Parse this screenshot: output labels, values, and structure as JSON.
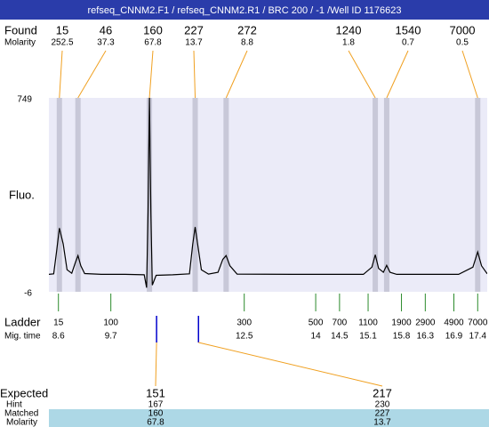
{
  "chart_data": {
    "type": "line",
    "title": "refseq_CNNM2.F1 / refseq_CNNM2.R1 / BRC 200 / -1 /Well ID 1176623",
    "y_label": "Fluo.",
    "ylim": [
      -6,
      749
    ],
    "yticks": [
      -6,
      749
    ],
    "xlim": [
      8.4,
      17.6
    ],
    "color": "#000000",
    "x": [
      8.4,
      8.5,
      8.56,
      8.62,
      8.7,
      8.78,
      8.88,
      8.96,
      9.01,
      9.07,
      9.15,
      9.5,
      10.0,
      10.4,
      10.45,
      10.48,
      10.51,
      10.54,
      10.57,
      10.65,
      11.0,
      11.35,
      11.42,
      11.47,
      11.53,
      11.6,
      11.75,
      11.95,
      12.05,
      12.12,
      12.2,
      12.35,
      13.5,
      15.0,
      15.18,
      15.25,
      15.32,
      15.42,
      15.49,
      15.56,
      15.7,
      17.0,
      17.3,
      17.4,
      17.48,
      17.6
    ],
    "values": [
      62,
      64,
      150,
      242,
      180,
      80,
      66,
      110,
      135,
      95,
      65,
      62,
      62,
      60,
      10,
      300,
      749,
      300,
      20,
      58,
      60,
      64,
      180,
      246,
      170,
      80,
      63,
      70,
      120,
      135,
      95,
      63,
      62,
      62,
      90,
      138,
      85,
      70,
      97,
      70,
      62,
      62,
      90,
      149,
      95,
      64
    ],
    "found": {
      "label": "Found",
      "sub_label": "Molarity",
      "sizes": [
        15,
        46,
        160,
        227,
        272,
        1240,
        1540,
        7000
      ],
      "molarity": [
        252.5,
        37.3,
        67.8,
        13.7,
        8.8,
        1.8,
        0.7,
        0.5
      ],
      "x": [
        8.62,
        9.01,
        10.51,
        11.47,
        12.12,
        15.25,
        15.49,
        17.4
      ]
    },
    "ladder": {
      "label": "Ladder",
      "sub_label": "Mig. time",
      "sizes": [
        15,
        100,
        300,
        500,
        700,
        1100,
        1900,
        2900,
        4900,
        7000
      ],
      "x": [
        8.6,
        9.7,
        12.5,
        14,
        14.5,
        15.1,
        15.8,
        16.3,
        16.9,
        17.4
      ]
    },
    "expected": {
      "label": "Expected",
      "values": [
        151,
        217
      ],
      "x": [
        10.66,
        11.54
      ],
      "hint_label": "Hint",
      "hint": [
        167,
        230
      ],
      "matched_label": "Matched",
      "matched": [
        160,
        227
      ],
      "molarity_label": "Molarity",
      "molarity": [
        67.8,
        13.7
      ]
    }
  }
}
